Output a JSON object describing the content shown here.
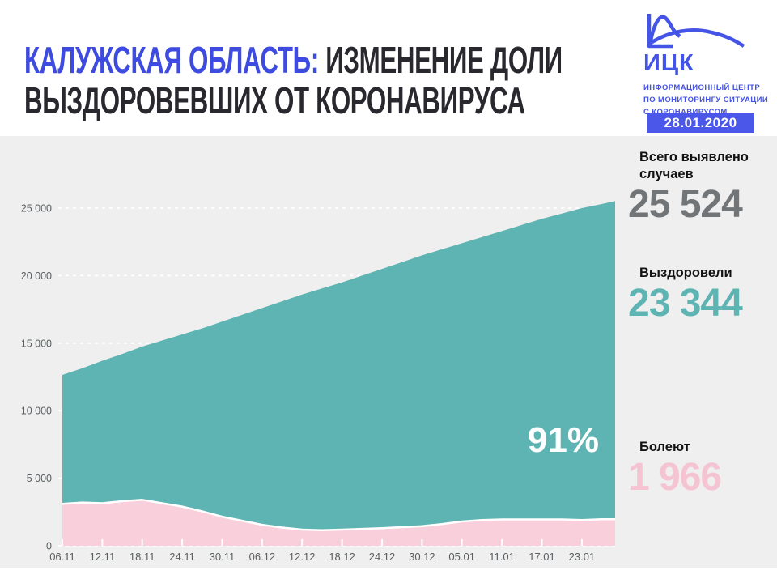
{
  "header": {
    "title": {
      "region": "КАЛУЖСКАЯ ОБЛАСТЬ:",
      "line1_rest": " ИЗМЕНЕНИЕ ДОЛИ",
      "line2": "ВЫЗДОРОВЕВШИХ ОТ КОРОНАВИРУСА"
    },
    "logo": {
      "abbr": "ИЦК",
      "sub_line1": "ИНФОРМАЦИОННЫЙ ЦЕНТР",
      "sub_line2": "ПО МОНИТОРИНГУ СИТУАЦИИ",
      "sub_line3": "С КОРОНАВИРУСОМ"
    },
    "date_badge": "28.01.2020"
  },
  "colors": {
    "brand_blue": "#3d4be0",
    "badge_blue": "#4a57e8",
    "logo_blue": "#4454e6",
    "recovered_teal": "#5db4b2",
    "active_pink": "#f8cfdb",
    "total_gray": "#717577",
    "panel_bg": "#efefef",
    "axis_text": "#5a5e60"
  },
  "stats": [
    {
      "label": "Всего выявлено случаев",
      "value": "25 524"
    },
    {
      "label": "Выздоровели",
      "value": "23 344"
    },
    {
      "label": "Болеют",
      "value": "1 966"
    }
  ],
  "chart_data": {
    "type": "area",
    "title": "Изменение доли выздоровевших от коронавируса — Калужская область",
    "annotation": {
      "text": "91%"
    },
    "x_axis": {
      "tick_labels": [
        "06.11",
        "12.11",
        "18.11",
        "24.11",
        "30.11",
        "06.12",
        "12.12",
        "18.12",
        "24.12",
        "30.12",
        "05.01",
        "11.01",
        "17.01",
        "23.01"
      ],
      "tick_day_offsets": [
        0,
        6,
        12,
        18,
        24,
        30,
        36,
        42,
        48,
        54,
        60,
        66,
        72,
        78
      ]
    },
    "y_axis": {
      "ticks": [
        0,
        5000,
        10000,
        15000,
        20000,
        25000
      ],
      "tick_labels": [
        "0",
        "5 000",
        "10 000",
        "15 000",
        "20 000",
        "25 000"
      ]
    },
    "day_offsets": [
      0,
      3,
      6,
      9,
      12,
      15,
      18,
      21,
      24,
      27,
      30,
      33,
      36,
      39,
      42,
      45,
      48,
      51,
      54,
      57,
      60,
      63,
      66,
      69,
      72,
      75,
      78,
      81,
      83
    ],
    "series": [
      {
        "name": "Всего выявлено случаев",
        "role": "total",
        "values": [
          12650,
          13150,
          13700,
          14200,
          14750,
          15200,
          15650,
          16100,
          16600,
          17100,
          17600,
          18100,
          18600,
          19050,
          19500,
          20000,
          20500,
          21000,
          21500,
          21950,
          22400,
          22850,
          23300,
          23750,
          24200,
          24600,
          25000,
          25300,
          25524
        ]
      },
      {
        "name": "Болеют",
        "role": "active",
        "values": [
          3100,
          3200,
          3150,
          3300,
          3400,
          3150,
          2900,
          2550,
          2150,
          1850,
          1550,
          1350,
          1200,
          1150,
          1200,
          1250,
          1300,
          1380,
          1450,
          1600,
          1800,
          1900,
          1950,
          1950,
          1950,
          1950,
          1900,
          1960,
          1966
        ]
      }
    ]
  }
}
